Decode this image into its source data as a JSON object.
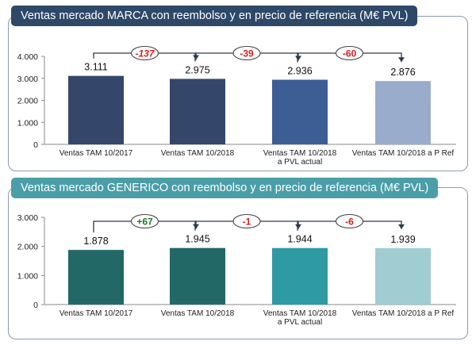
{
  "colors": {
    "marca_tab": "#2e4868",
    "generico_tab": "#4a9ea8",
    "axis": "#888888",
    "up": "#1e7a2a",
    "down": "#d91c1c"
  },
  "chart_data": [
    {
      "type": "bar",
      "title": "Ventas mercado MARCA con reembolso y en precio de referencia (M€ PVL)",
      "categories": [
        [
          "Ventas TAM 10/2017"
        ],
        [
          "Ventas TAM 10/2018"
        ],
        [
          "Ventas TAM 10/2018",
          "a PVL actual"
        ],
        [
          "Ventas TAM 10/2018 a P Ref"
        ]
      ],
      "values": [
        3111,
        2975,
        2936,
        2876
      ],
      "value_labels": [
        "3.111",
        "2.975",
        "2.936",
        "2.876"
      ],
      "bar_colors": [
        "#34476b",
        "#34476b",
        "#3d5d95",
        "#9aaccc"
      ],
      "ylim": [
        0,
        4000
      ],
      "yticks": [
        0,
        1000,
        2000,
        3000,
        4000
      ],
      "ytick_labels": [
        "0",
        "1.000",
        "2.000",
        "3.000",
        "4.000"
      ],
      "deltas": [
        "-137",
        "-39",
        "-60"
      ],
      "delta_colors": [
        "#d91c1c",
        "#d91c1c",
        "#d91c1c"
      ],
      "delta_italic": [
        true,
        false,
        false
      ],
      "xlabel": "",
      "ylabel": "",
      "grid": false,
      "legend": "none"
    },
    {
      "type": "bar",
      "title": "Ventas mercado GENERICO con reembolso y en precio de referencia (M€ PVL)",
      "categories": [
        [
          "Ventas TAM 10/2017"
        ],
        [
          "Ventas TAM 10/2018"
        ],
        [
          "Ventas TAM 10/2018",
          "a PVL actual"
        ],
        [
          "Ventas TAM 10/2018 a P Ref"
        ]
      ],
      "values": [
        1878,
        1945,
        1944,
        1939
      ],
      "value_labels": [
        "1.878",
        "1.945",
        "1.944",
        "1.939"
      ],
      "bar_colors": [
        "#226866",
        "#226866",
        "#2e9aa4",
        "#9fcdd1"
      ],
      "ylim": [
        0,
        3000
      ],
      "yticks": [
        0,
        1000,
        2000,
        3000
      ],
      "ytick_labels": [
        "0",
        "1.000",
        "2.000",
        "3.000"
      ],
      "deltas": [
        "+67",
        "-1",
        "-6"
      ],
      "delta_colors": [
        "#1e7a2a",
        "#d91c1c",
        "#d91c1c"
      ],
      "delta_italic": [
        false,
        false,
        false
      ],
      "xlabel": "",
      "ylabel": "",
      "grid": false,
      "legend": "none"
    }
  ]
}
